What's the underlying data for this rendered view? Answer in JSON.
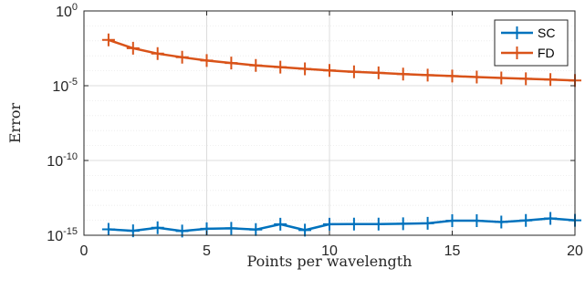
{
  "chart_data": {
    "type": "line",
    "xlabel": "Points per wavelength",
    "ylabel": "Error",
    "xlim": [
      0,
      20
    ],
    "ylim": [
      1e-15,
      1
    ],
    "yscale": "log",
    "xticks": [
      "0",
      "5",
      "10",
      "15",
      "20"
    ],
    "xtick_values": [
      0,
      5,
      10,
      15,
      20
    ],
    "yticks": [
      {
        "base": "10",
        "exp": "0",
        "value": 1
      },
      {
        "base": "10",
        "exp": "-5",
        "value": 1e-05
      },
      {
        "base": "10",
        "exp": "-10",
        "value": 1e-10
      },
      {
        "base": "10",
        "exp": "-15",
        "value": 1e-15
      }
    ],
    "grid": true,
    "minor_grid": true,
    "legend": "top-right",
    "x": [
      1,
      2,
      3,
      4,
      5,
      6,
      7,
      8,
      9,
      10,
      11,
      12,
      13,
      14,
      15,
      16,
      17,
      18,
      19,
      20
    ],
    "series": [
      {
        "name": "SC",
        "color": "#0072BD",
        "marker": "plus",
        "values": [
          2.5e-15,
          2e-15,
          3.2e-15,
          1.9e-15,
          2.7e-15,
          2.9e-15,
          2.4e-15,
          5.5e-15,
          2.2e-15,
          5.5e-15,
          5.6e-15,
          5.6e-15,
          5.9e-15,
          6.3e-15,
          9.5e-15,
          9.4e-15,
          7.7e-15,
          9.7e-15,
          1.35e-14,
          1e-14
        ]
      },
      {
        "name": "FD",
        "color": "#D95319",
        "marker": "plus",
        "values": [
          0.0115,
          0.0032,
          0.0014,
          0.0008,
          0.00048,
          0.00033,
          0.00023,
          0.000175,
          0.000135,
          0.000105,
          8.5e-05,
          7.2e-05,
          6e-05,
          5.1e-05,
          4.4e-05,
          3.8e-05,
          3.3e-05,
          2.9e-05,
          2.55e-05,
          2.25e-05
        ]
      }
    ]
  }
}
